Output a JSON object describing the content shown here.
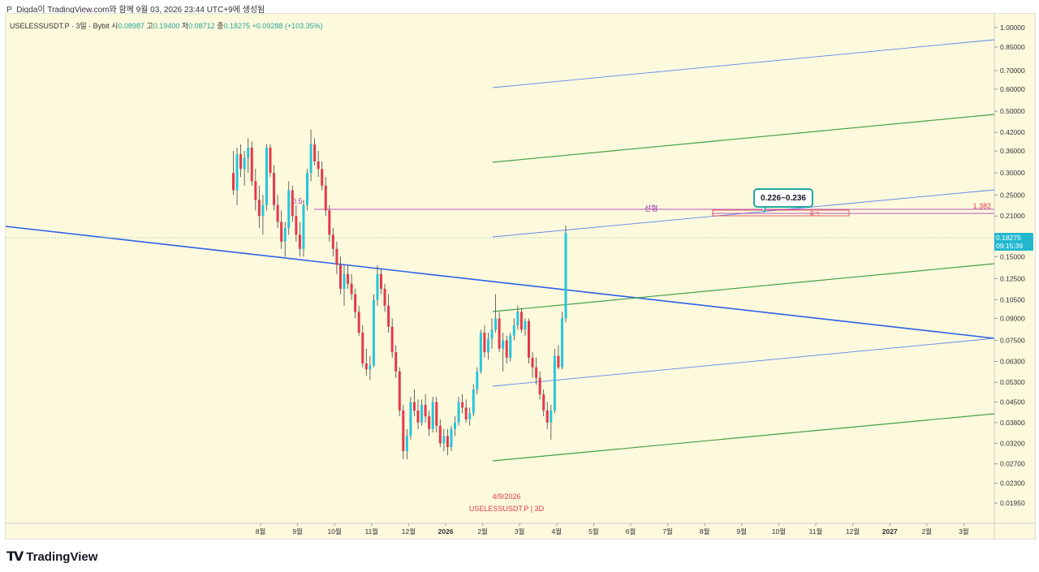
{
  "caption": "P_Digda이 TradingView.com와 함께 9월 03, 2026 23:44 UTC+9에 생성됨",
  "header": {
    "symbol_line": "USELESSUSDT.P · 3일 · Bybit",
    "open_label": "시",
    "open": "0.08987",
    "high_label": "고",
    "high": "0.19400",
    "low_label": "저",
    "low": "0.08712",
    "close_label": "종",
    "close": "0.18275",
    "change": "+0.09288 (+103.35%)"
  },
  "price_tag": {
    "price": "0.18275",
    "countdown": "09:15:39"
  },
  "annotations": {
    "callout": "0.226~0.236",
    "fib_05": "0.5",
    "line_label": "선형",
    "log_label": "로그",
    "fib_1382": "1.382",
    "date_label": "4/9/2026",
    "watermark": "USELESSUSDT.P  |  3D"
  },
  "footer": {
    "logo_text": "TradingView"
  },
  "colors": {
    "up": "#26c6da",
    "down": "#e53949",
    "trend_blue": "#2d62e8",
    "channel_green": "#43a047",
    "channel_blue": "#5b87e8",
    "fib_purple": "#9c27b0"
  },
  "chart_data": {
    "type": "candlestick",
    "scale": "log",
    "y_ticks": [
      "1.00000",
      "0.85000",
      "0.70000",
      "0.60000",
      "0.50000",
      "0.42000",
      "0.36000",
      "0.30000",
      "0.25000",
      "0.21000",
      "0.15000",
      "0.12500",
      "0.10500",
      "0.09000",
      "0.07500",
      "0.06300",
      "0.05300",
      "0.04500",
      "0.03800",
      "0.03200",
      "0.02700",
      "0.02300",
      "0.01950"
    ],
    "x_ticks": [
      "8월",
      "9월",
      "10월",
      "11월",
      "12월",
      "2026",
      "2월",
      "3월",
      "4월",
      "5월",
      "6월",
      "7월",
      "8월",
      "9월",
      "10월",
      "11월",
      "12월",
      "2027",
      "2월",
      "3월"
    ],
    "ylim": [
      0.0165,
      1.12
    ],
    "last_price": 0.18275,
    "candles": [
      [
        0.3,
        0.36,
        0.25,
        0.26
      ],
      [
        0.26,
        0.37,
        0.23,
        0.35
      ],
      [
        0.35,
        0.38,
        0.29,
        0.31
      ],
      [
        0.31,
        0.36,
        0.27,
        0.34
      ],
      [
        0.34,
        0.4,
        0.3,
        0.37
      ],
      [
        0.37,
        0.39,
        0.27,
        0.28
      ],
      [
        0.28,
        0.31,
        0.22,
        0.24
      ],
      [
        0.24,
        0.27,
        0.19,
        0.21
      ],
      [
        0.21,
        0.25,
        0.18,
        0.23
      ],
      [
        0.23,
        0.38,
        0.22,
        0.37
      ],
      [
        0.37,
        0.38,
        0.29,
        0.3
      ],
      [
        0.3,
        0.32,
        0.22,
        0.23
      ],
      [
        0.23,
        0.25,
        0.19,
        0.2
      ],
      [
        0.2,
        0.22,
        0.16,
        0.17
      ],
      [
        0.17,
        0.2,
        0.15,
        0.19
      ],
      [
        0.19,
        0.28,
        0.18,
        0.26
      ],
      [
        0.26,
        0.27,
        0.2,
        0.21
      ],
      [
        0.21,
        0.23,
        0.17,
        0.18
      ],
      [
        0.18,
        0.2,
        0.15,
        0.16
      ],
      [
        0.16,
        0.24,
        0.15,
        0.23
      ],
      [
        0.23,
        0.31,
        0.22,
        0.3
      ],
      [
        0.3,
        0.43,
        0.28,
        0.38
      ],
      [
        0.38,
        0.4,
        0.32,
        0.33
      ],
      [
        0.33,
        0.36,
        0.29,
        0.31
      ],
      [
        0.31,
        0.33,
        0.26,
        0.27
      ],
      [
        0.27,
        0.29,
        0.21,
        0.22
      ],
      [
        0.22,
        0.23,
        0.17,
        0.18
      ],
      [
        0.18,
        0.19,
        0.15,
        0.16
      ],
      [
        0.16,
        0.17,
        0.13,
        0.14
      ],
      [
        0.14,
        0.15,
        0.11,
        0.115
      ],
      [
        0.115,
        0.14,
        0.1,
        0.13
      ],
      [
        0.13,
        0.14,
        0.115,
        0.12
      ],
      [
        0.12,
        0.13,
        0.105,
        0.11
      ],
      [
        0.11,
        0.115,
        0.09,
        0.095
      ],
      [
        0.095,
        0.1,
        0.078,
        0.08
      ],
      [
        0.08,
        0.085,
        0.06,
        0.062
      ],
      [
        0.062,
        0.07,
        0.056,
        0.059
      ],
      [
        0.059,
        0.066,
        0.054,
        0.061
      ],
      [
        0.061,
        0.11,
        0.06,
        0.105
      ],
      [
        0.105,
        0.14,
        0.1,
        0.13
      ],
      [
        0.13,
        0.135,
        0.11,
        0.115
      ],
      [
        0.115,
        0.12,
        0.095,
        0.1
      ],
      [
        0.1,
        0.11,
        0.08,
        0.084
      ],
      [
        0.084,
        0.09,
        0.065,
        0.068
      ],
      [
        0.068,
        0.072,
        0.055,
        0.058
      ],
      [
        0.058,
        0.06,
        0.04,
        0.042
      ],
      [
        0.042,
        0.044,
        0.028,
        0.03
      ],
      [
        0.03,
        0.036,
        0.028,
        0.034
      ],
      [
        0.034,
        0.047,
        0.033,
        0.045
      ],
      [
        0.045,
        0.05,
        0.04,
        0.042
      ],
      [
        0.042,
        0.046,
        0.036,
        0.038
      ],
      [
        0.038,
        0.046,
        0.037,
        0.044
      ],
      [
        0.044,
        0.048,
        0.038,
        0.04
      ],
      [
        0.04,
        0.042,
        0.034,
        0.036
      ],
      [
        0.036,
        0.047,
        0.035,
        0.045
      ],
      [
        0.045,
        0.047,
        0.035,
        0.037
      ],
      [
        0.037,
        0.039,
        0.031,
        0.032
      ],
      [
        0.032,
        0.036,
        0.03,
        0.034
      ],
      [
        0.034,
        0.036,
        0.029,
        0.031
      ],
      [
        0.031,
        0.037,
        0.03,
        0.036
      ],
      [
        0.036,
        0.04,
        0.034,
        0.038
      ],
      [
        0.038,
        0.047,
        0.037,
        0.045
      ],
      [
        0.045,
        0.048,
        0.041,
        0.043
      ],
      [
        0.043,
        0.046,
        0.038,
        0.039
      ],
      [
        0.039,
        0.043,
        0.037,
        0.041
      ],
      [
        0.041,
        0.052,
        0.04,
        0.05
      ],
      [
        0.05,
        0.06,
        0.048,
        0.058
      ],
      [
        0.058,
        0.082,
        0.057,
        0.08
      ],
      [
        0.08,
        0.085,
        0.065,
        0.068
      ],
      [
        0.068,
        0.08,
        0.064,
        0.076
      ],
      [
        0.076,
        0.09,
        0.07,
        0.082
      ],
      [
        0.082,
        0.11,
        0.08,
        0.09
      ],
      [
        0.09,
        0.095,
        0.068,
        0.07
      ],
      [
        0.07,
        0.08,
        0.058,
        0.075
      ],
      [
        0.075,
        0.078,
        0.062,
        0.065
      ],
      [
        0.065,
        0.08,
        0.063,
        0.078
      ],
      [
        0.078,
        0.09,
        0.075,
        0.085
      ],
      [
        0.085,
        0.1,
        0.082,
        0.095
      ],
      [
        0.095,
        0.098,
        0.08,
        0.082
      ],
      [
        0.082,
        0.09,
        0.078,
        0.088
      ],
      [
        0.088,
        0.09,
        0.062,
        0.065
      ],
      [
        0.065,
        0.068,
        0.055,
        0.06
      ],
      [
        0.06,
        0.065,
        0.052,
        0.055
      ],
      [
        0.055,
        0.058,
        0.046,
        0.048
      ],
      [
        0.048,
        0.05,
        0.04,
        0.042
      ],
      [
        0.042,
        0.045,
        0.036,
        0.038
      ],
      [
        0.038,
        0.044,
        0.033,
        0.042
      ],
      [
        0.042,
        0.07,
        0.041,
        0.066
      ],
      [
        0.066,
        0.072,
        0.059,
        0.06
      ],
      [
        0.06,
        0.095,
        0.059,
        0.09
      ],
      [
        0.09,
        0.194,
        0.087,
        0.18275
      ]
    ]
  }
}
